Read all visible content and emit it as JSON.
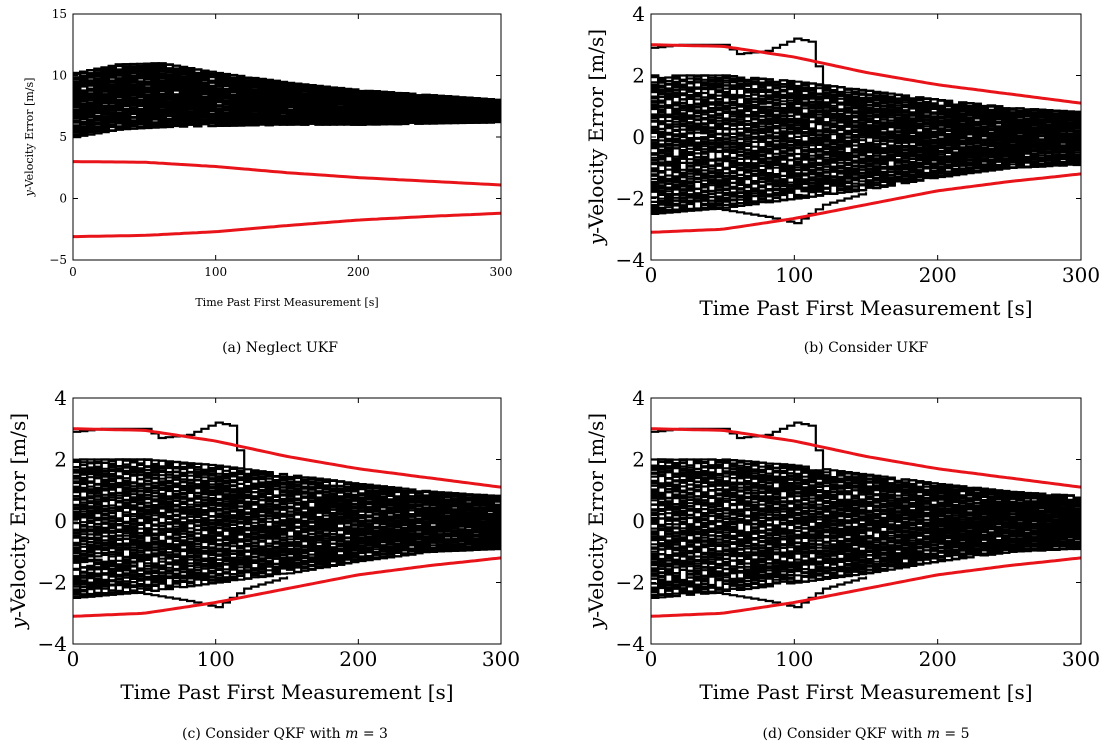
{
  "chart_data": [
    {
      "type": "line",
      "panel": "a",
      "caption": "(a)  Neglect UKF",
      "xlabel": "Time Past First Measurement [s]",
      "ylabel_prefix": "y",
      "ylabel": "-Velocity Error [m/s]",
      "xlim": [
        0,
        300
      ],
      "ylim": [
        -5,
        15
      ],
      "xticks": [
        0,
        100,
        200,
        300
      ],
      "yticks": [
        -5,
        0,
        5,
        10,
        15
      ],
      "grid": false,
      "series": [
        {
          "role": "error_band",
          "color": "#000000",
          "x": [
            0,
            30,
            60,
            100,
            150,
            200,
            250,
            300
          ],
          "y_upper": [
            10.2,
            10.9,
            11.0,
            10.2,
            9.4,
            8.8,
            8.4,
            8.0
          ],
          "y_lower": [
            5.0,
            5.6,
            5.8,
            5.9,
            6.0,
            6.0,
            6.1,
            6.2
          ]
        },
        {
          "role": "sigma_bound_upper",
          "color": "#e8141a",
          "x": [
            0,
            50,
            100,
            150,
            200,
            250,
            300
          ],
          "y": [
            3.0,
            2.95,
            2.6,
            2.1,
            1.7,
            1.4,
            1.1
          ]
        },
        {
          "role": "sigma_bound_lower",
          "color": "#e8141a",
          "x": [
            0,
            50,
            100,
            150,
            200,
            250,
            300
          ],
          "y": [
            -3.1,
            -3.0,
            -2.7,
            -2.2,
            -1.75,
            -1.45,
            -1.2
          ]
        }
      ]
    },
    {
      "type": "line",
      "panel": "b",
      "caption": "(b)  Consider UKF",
      "xlabel": "Time Past First Measurement [s]",
      "ylabel_prefix": "y",
      "ylabel": "-Velocity Error [m/s]",
      "xlim": [
        0,
        300
      ],
      "ylim": [
        -4,
        4
      ],
      "xticks": [
        0,
        100,
        200,
        300
      ],
      "yticks": [
        -4,
        -2,
        0,
        2,
        4
      ],
      "grid": false,
      "series": [
        {
          "role": "error_band",
          "color": "#000000",
          "x": [
            0,
            50,
            100,
            150,
            200,
            250,
            300
          ],
          "y_upper": [
            2.0,
            2.0,
            1.8,
            1.5,
            1.2,
            0.95,
            0.8
          ],
          "y_lower": [
            -2.5,
            -2.3,
            -2.0,
            -1.7,
            -1.3,
            -1.0,
            -0.9
          ]
        },
        {
          "role": "outlier_upper",
          "color": "#000000",
          "x": [
            0,
            20,
            50,
            60,
            80,
            90,
            100,
            110,
            120
          ],
          "y": [
            2.9,
            3.0,
            3.0,
            2.7,
            2.8,
            3.0,
            3.2,
            3.1,
            1.5
          ]
        },
        {
          "role": "outlier_lower",
          "color": "#000000",
          "x": [
            0,
            40,
            80,
            100,
            120,
            150
          ],
          "y": [
            -2.4,
            -2.3,
            -2.6,
            -2.8,
            -2.2,
            -1.8
          ]
        },
        {
          "role": "sigma_bound_upper",
          "color": "#e8141a",
          "x": [
            0,
            50,
            100,
            150,
            200,
            250,
            300
          ],
          "y": [
            3.0,
            2.95,
            2.6,
            2.1,
            1.7,
            1.4,
            1.1
          ]
        },
        {
          "role": "sigma_bound_lower",
          "color": "#e8141a",
          "x": [
            0,
            50,
            100,
            150,
            200,
            250,
            300
          ],
          "y": [
            -3.1,
            -3.0,
            -2.65,
            -2.2,
            -1.75,
            -1.45,
            -1.2
          ]
        }
      ]
    },
    {
      "type": "line",
      "panel": "c",
      "caption": "(c)  Consider QKF with ",
      "caption_math_var": "m",
      "caption_math_rest": " = 3",
      "xlabel": "Time Past First Measurement [s]",
      "ylabel_prefix": "y",
      "ylabel": "-Velocity Error [m/s]",
      "xlim": [
        0,
        300
      ],
      "ylim": [
        -4,
        4
      ],
      "xticks": [
        0,
        100,
        200,
        300
      ],
      "yticks": [
        -4,
        -2,
        0,
        2,
        4
      ],
      "grid": false,
      "series": [
        {
          "role": "error_band",
          "color": "#000000",
          "x": [
            0,
            50,
            100,
            150,
            200,
            250,
            300
          ],
          "y_upper": [
            2.0,
            2.0,
            1.8,
            1.5,
            1.2,
            0.95,
            0.8
          ],
          "y_lower": [
            -2.5,
            -2.3,
            -2.0,
            -1.7,
            -1.3,
            -1.0,
            -0.9
          ]
        },
        {
          "role": "outlier_upper",
          "color": "#000000",
          "x": [
            0,
            20,
            50,
            60,
            80,
            90,
            100,
            110,
            120
          ],
          "y": [
            2.9,
            3.0,
            3.0,
            2.7,
            2.8,
            3.0,
            3.2,
            3.1,
            1.5
          ]
        },
        {
          "role": "outlier_lower",
          "color": "#000000",
          "x": [
            0,
            40,
            80,
            100,
            120,
            150
          ],
          "y": [
            -2.4,
            -2.3,
            -2.6,
            -2.8,
            -2.2,
            -1.8
          ]
        },
        {
          "role": "sigma_bound_upper",
          "color": "#e8141a",
          "x": [
            0,
            50,
            100,
            150,
            200,
            250,
            300
          ],
          "y": [
            3.0,
            2.95,
            2.6,
            2.1,
            1.7,
            1.4,
            1.1
          ]
        },
        {
          "role": "sigma_bound_lower",
          "color": "#e8141a",
          "x": [
            0,
            50,
            100,
            150,
            200,
            250,
            300
          ],
          "y": [
            -3.1,
            -3.0,
            -2.65,
            -2.2,
            -1.75,
            -1.45,
            -1.2
          ]
        }
      ]
    },
    {
      "type": "line",
      "panel": "d",
      "caption": "(d)  Consider QKF with ",
      "caption_math_var": "m",
      "caption_math_rest": " = 5",
      "xlabel": "Time Past First Measurement [s]",
      "ylabel_prefix": "y",
      "ylabel": "-Velocity Error [m/s]",
      "xlim": [
        0,
        300
      ],
      "ylim": [
        -4,
        4
      ],
      "xticks": [
        0,
        100,
        200,
        300
      ],
      "yticks": [
        -4,
        -2,
        0,
        2,
        4
      ],
      "grid": false,
      "series": [
        {
          "role": "error_band",
          "color": "#000000",
          "x": [
            0,
            50,
            100,
            150,
            200,
            250,
            300
          ],
          "y_upper": [
            2.0,
            2.0,
            1.8,
            1.5,
            1.2,
            0.95,
            0.8
          ],
          "y_lower": [
            -2.5,
            -2.3,
            -2.0,
            -1.7,
            -1.3,
            -1.0,
            -0.9
          ]
        },
        {
          "role": "outlier_upper",
          "color": "#000000",
          "x": [
            0,
            20,
            50,
            60,
            80,
            90,
            100,
            110,
            120
          ],
          "y": [
            2.9,
            3.0,
            3.0,
            2.7,
            2.8,
            3.0,
            3.2,
            3.1,
            1.5
          ]
        },
        {
          "role": "outlier_lower",
          "color": "#000000",
          "x": [
            0,
            40,
            80,
            100,
            120,
            150
          ],
          "y": [
            -2.4,
            -2.3,
            -2.6,
            -2.8,
            -2.2,
            -1.8
          ]
        },
        {
          "role": "sigma_bound_upper",
          "color": "#e8141a",
          "x": [
            0,
            50,
            100,
            150,
            200,
            250,
            300
          ],
          "y": [
            3.0,
            2.95,
            2.6,
            2.1,
            1.7,
            1.4,
            1.1
          ]
        },
        {
          "role": "sigma_bound_lower",
          "color": "#e8141a",
          "x": [
            0,
            50,
            100,
            150,
            200,
            250,
            300
          ],
          "y": [
            -3.1,
            -3.0,
            -2.65,
            -2.2,
            -1.75,
            -1.45,
            -1.2
          ]
        }
      ]
    }
  ]
}
